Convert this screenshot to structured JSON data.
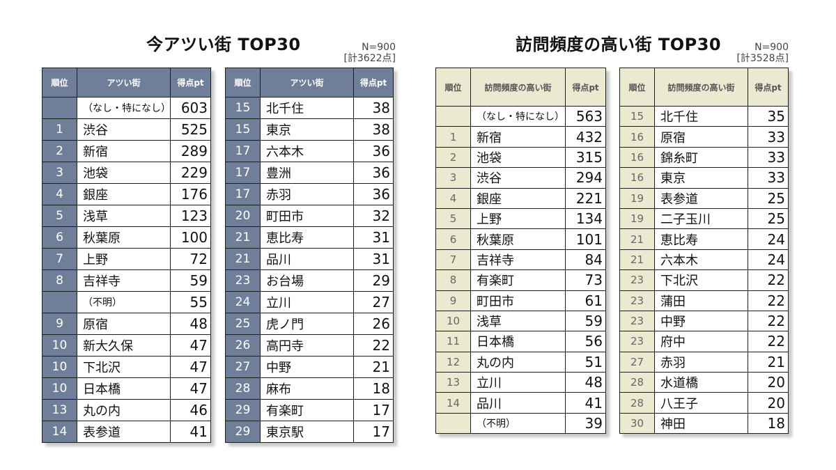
{
  "left": {
    "title": "今アツい街 TOP30",
    "n": "N=900",
    "total": "[計3622点]",
    "headers": [
      "順位",
      "アツい街",
      "得点pt"
    ],
    "col1": [
      {
        "rank": "",
        "name": "（なし・特になし）",
        "pts": "603"
      },
      {
        "rank": "1",
        "name": "渋谷",
        "pts": "525"
      },
      {
        "rank": "2",
        "name": "新宿",
        "pts": "289"
      },
      {
        "rank": "3",
        "name": "池袋",
        "pts": "229"
      },
      {
        "rank": "4",
        "name": "銀座",
        "pts": "176"
      },
      {
        "rank": "5",
        "name": "浅草",
        "pts": "123"
      },
      {
        "rank": "6",
        "name": "秋葉原",
        "pts": "100"
      },
      {
        "rank": "7",
        "name": "上野",
        "pts": "72"
      },
      {
        "rank": "8",
        "name": "吉祥寺",
        "pts": "59"
      },
      {
        "rank": "",
        "name": "（不明）",
        "pts": "55"
      },
      {
        "rank": "9",
        "name": "原宿",
        "pts": "48"
      },
      {
        "rank": "10",
        "name": "新大久保",
        "pts": "47"
      },
      {
        "rank": "10",
        "name": "下北沢",
        "pts": "47"
      },
      {
        "rank": "10",
        "name": "日本橋",
        "pts": "47"
      },
      {
        "rank": "13",
        "name": "丸の内",
        "pts": "46"
      },
      {
        "rank": "14",
        "name": "表参道",
        "pts": "41"
      }
    ],
    "col2": [
      {
        "rank": "15",
        "name": "北千住",
        "pts": "38"
      },
      {
        "rank": "15",
        "name": "東京",
        "pts": "38"
      },
      {
        "rank": "17",
        "name": "六本木",
        "pts": "36"
      },
      {
        "rank": "17",
        "name": "豊洲",
        "pts": "36"
      },
      {
        "rank": "17",
        "name": "赤羽",
        "pts": "36"
      },
      {
        "rank": "20",
        "name": "町田市",
        "pts": "32"
      },
      {
        "rank": "21",
        "name": "恵比寿",
        "pts": "31"
      },
      {
        "rank": "21",
        "name": "品川",
        "pts": "31"
      },
      {
        "rank": "23",
        "name": "お台場",
        "pts": "29"
      },
      {
        "rank": "24",
        "name": "立川",
        "pts": "27"
      },
      {
        "rank": "25",
        "name": "虎ノ門",
        "pts": "26"
      },
      {
        "rank": "26",
        "name": "高円寺",
        "pts": "22"
      },
      {
        "rank": "27",
        "name": "中野",
        "pts": "21"
      },
      {
        "rank": "28",
        "name": "麻布",
        "pts": "18"
      },
      {
        "rank": "29",
        "name": "有楽町",
        "pts": "17"
      },
      {
        "rank": "29",
        "name": "東京駅",
        "pts": "17"
      }
    ]
  },
  "right": {
    "title": "訪問頻度の高い街 TOP30",
    "n": "N=900",
    "total": "[計3528点]",
    "headers": [
      "順位",
      "訪問頻度の高い街",
      "得点pt"
    ],
    "col1": [
      {
        "rank": "",
        "name": "（なし・特になし）",
        "pts": "563"
      },
      {
        "rank": "1",
        "name": "新宿",
        "pts": "432"
      },
      {
        "rank": "2",
        "name": "池袋",
        "pts": "315"
      },
      {
        "rank": "3",
        "name": "渋谷",
        "pts": "294"
      },
      {
        "rank": "4",
        "name": "銀座",
        "pts": "221"
      },
      {
        "rank": "5",
        "name": "上野",
        "pts": "134"
      },
      {
        "rank": "6",
        "name": "秋葉原",
        "pts": "101"
      },
      {
        "rank": "7",
        "name": "吉祥寺",
        "pts": "84"
      },
      {
        "rank": "8",
        "name": "有楽町",
        "pts": "73"
      },
      {
        "rank": "9",
        "name": "町田市",
        "pts": "61"
      },
      {
        "rank": "10",
        "name": "浅草",
        "pts": "59"
      },
      {
        "rank": "11",
        "name": "日本橋",
        "pts": "56"
      },
      {
        "rank": "12",
        "name": "丸の内",
        "pts": "51"
      },
      {
        "rank": "13",
        "name": "立川",
        "pts": "48"
      },
      {
        "rank": "14",
        "name": "品川",
        "pts": "41"
      },
      {
        "rank": "",
        "name": "（不明）",
        "pts": "39"
      }
    ],
    "col2": [
      {
        "rank": "15",
        "name": "北千住",
        "pts": "35"
      },
      {
        "rank": "16",
        "name": "原宿",
        "pts": "33"
      },
      {
        "rank": "16",
        "name": "錦糸町",
        "pts": "33"
      },
      {
        "rank": "16",
        "name": "東京",
        "pts": "33"
      },
      {
        "rank": "19",
        "name": "表参道",
        "pts": "25"
      },
      {
        "rank": "19",
        "name": "二子玉川",
        "pts": "25"
      },
      {
        "rank": "21",
        "name": "恵比寿",
        "pts": "24"
      },
      {
        "rank": "21",
        "name": "六本木",
        "pts": "24"
      },
      {
        "rank": "23",
        "name": "下北沢",
        "pts": "22"
      },
      {
        "rank": "23",
        "name": "蒲田",
        "pts": "22"
      },
      {
        "rank": "23",
        "name": "中野",
        "pts": "22"
      },
      {
        "rank": "23",
        "name": "府中",
        "pts": "22"
      },
      {
        "rank": "27",
        "name": "赤羽",
        "pts": "21"
      },
      {
        "rank": "28",
        "name": "水道橋",
        "pts": "20"
      },
      {
        "rank": "28",
        "name": "八王子",
        "pts": "20"
      },
      {
        "rank": "30",
        "name": "神田",
        "pts": "18"
      }
    ]
  }
}
